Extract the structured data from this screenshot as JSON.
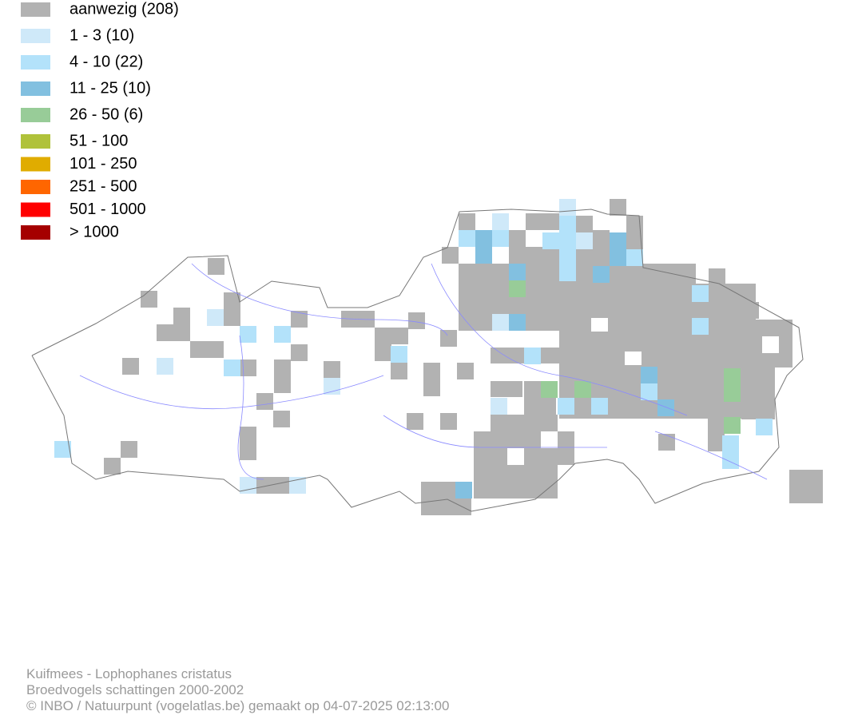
{
  "legend": [
    {
      "label": "aanwezig (208)",
      "color": "#b2b2b2"
    },
    {
      "label": "1 - 3 (10)",
      "color": "#cfe9f9"
    },
    {
      "label": "4 - 10 (22)",
      "color": "#b3e2fa"
    },
    {
      "label": "11 - 25 (10)",
      "color": "#82c0e0"
    },
    {
      "label": "26 - 50 (6)",
      "color": "#98cc98"
    },
    {
      "label": "51 - 100",
      "color": "#b0c23a"
    },
    {
      "label": "101 - 250",
      "color": "#e0ac00"
    },
    {
      "label": "251 - 500",
      "color": "#ff6600"
    },
    {
      "label": "501 - 1000",
      "color": "#ff0000"
    },
    {
      "label": "> 1000",
      "color": "#a50000"
    }
  ],
  "footer": [
    "Kuifmees - Lophophanes cristatus",
    "Broedvogels schattingen 2000-2002",
    "© INBO / Natuurpunt (vogelatlas.be) gemaakt op 04-07-2025 02:13:00"
  ]
}
